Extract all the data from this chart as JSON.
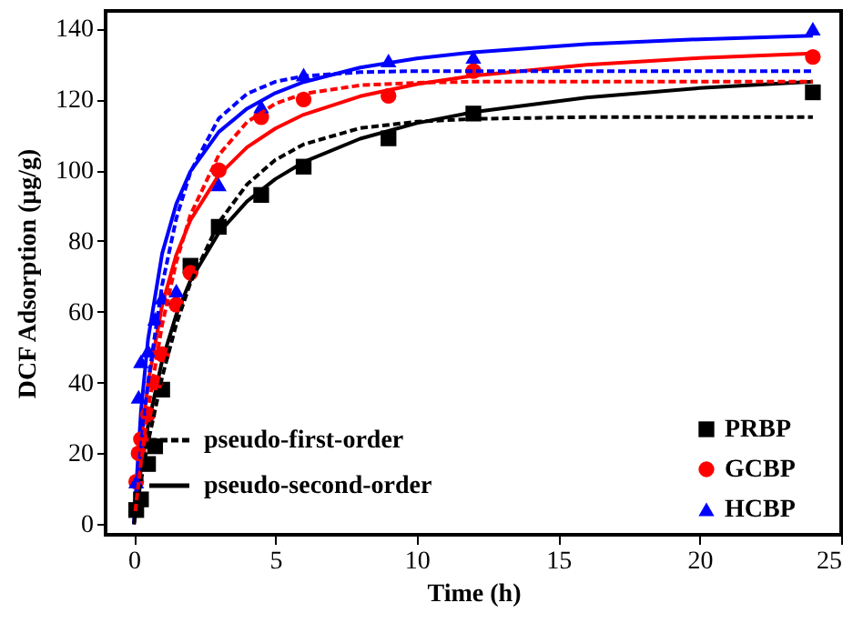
{
  "chart_data": {
    "type": "scatter",
    "xlabel": "Time (h)",
    "ylabel": "DCF Adsorption (μg/g)",
    "xlim": [
      -1,
      25
    ],
    "ylim": [
      -3,
      145
    ],
    "xticks": [
      0,
      5,
      10,
      15,
      20,
      25
    ],
    "yticks": [
      0,
      20,
      40,
      60,
      80,
      100,
      120,
      140
    ],
    "grid": false,
    "legend": "bottom right",
    "series": [
      {
        "type": "line",
        "name": "pseudo-first-order",
        "color": "#000000",
        "line_style": "dashed",
        "x": [
          0,
          0.25,
          0.5,
          1,
          1.5,
          2,
          3,
          4,
          5,
          6,
          8,
          10,
          12,
          16,
          20,
          24
        ],
        "values": [
          0,
          12.2,
          23.1,
          41.6,
          56.5,
          68.2,
          85.2,
          96.0,
          102.9,
          107.3,
          111.9,
          113.7,
          114.5,
          115,
          115,
          115
        ]
      },
      {
        "type": "line",
        "color": "#0000ff",
        "line_style": "dashed",
        "x": [
          0.1,
          0.25,
          0.5,
          1,
          1.5,
          2,
          3,
          4,
          5,
          6,
          8,
          10,
          12,
          16,
          20,
          24
        ],
        "values": [
          9.2,
          21.9,
          40.0,
          67.6,
          86.4,
          99.5,
          114.6,
          121.6,
          125.0,
          126.6,
          127.7,
          128,
          128,
          128,
          128,
          128
        ]
      },
      {
        "type": "line",
        "color": "#ff0000",
        "line_style": "dashed",
        "x": [
          0.05,
          0.25,
          0.5,
          1,
          1.5,
          2,
          3,
          4,
          5,
          6,
          8,
          10,
          12,
          16,
          20,
          24
        ],
        "values": [
          3.7,
          17.4,
          32.4,
          56.4,
          74.1,
          87.4,
          104.3,
          113.6,
          118.8,
          121.6,
          124.0,
          124.7,
          125,
          125,
          125,
          125
        ]
      },
      {
        "type": "line",
        "name": "pseudo-second-order",
        "color": "#000000",
        "line_style": "solid",
        "x": [
          0,
          0.25,
          0.5,
          1,
          1.5,
          2,
          3,
          4,
          5,
          6,
          8,
          10,
          12,
          16,
          20,
          24
        ],
        "values": [
          0,
          15.6,
          27.9,
          46.2,
          59.2,
          68.9,
          82.3,
          91.2,
          97.5,
          102.3,
          108.9,
          113.3,
          116.4,
          120.5,
          123.2,
          125.0
        ]
      },
      {
        "type": "line",
        "color": "#ff0000",
        "line_style": "solid",
        "x": [
          0,
          0.25,
          0.5,
          1,
          1.5,
          2,
          3,
          4,
          5,
          6,
          8,
          10,
          12,
          16,
          20,
          24
        ],
        "values": [
          0,
          23.2,
          39.8,
          61.9,
          76.1,
          85.9,
          98.6,
          106.5,
          111.8,
          115.7,
          120.9,
          124.3,
          126.7,
          129.8,
          131.7,
          133.0
        ]
      },
      {
        "type": "line",
        "color": "#0000ff",
        "line_style": "solid",
        "x": [
          0,
          0.25,
          0.5,
          1,
          1.5,
          2,
          3,
          4,
          5,
          6,
          8,
          10,
          12,
          16,
          20,
          24
        ],
        "values": [
          0,
          31.9,
          52.2,
          76.5,
          90.5,
          99.7,
          110.8,
          117.4,
          121.8,
          124.9,
          129.0,
          131.6,
          133.3,
          135.6,
          137.0,
          138.0
        ]
      },
      {
        "name": "PRBP",
        "color": "#000000",
        "marker": "square",
        "x": [
          0.083,
          0.25,
          0.5,
          0.75,
          1,
          2,
          3,
          4.5,
          6,
          9,
          12,
          24
        ],
        "values": [
          4,
          7,
          17,
          22,
          38,
          73,
          84,
          93,
          101,
          109,
          116,
          122
        ]
      },
      {
        "name": "GCBP",
        "color": "#ff0000",
        "marker": "circle",
        "x": [
          0.083,
          0.167,
          0.25,
          0.5,
          0.75,
          1,
          1.5,
          2,
          3,
          4.5,
          6,
          9,
          12,
          24
        ],
        "values": [
          12,
          20,
          24,
          31,
          40,
          48,
          62,
          71,
          100,
          115,
          120,
          121,
          128,
          132
        ]
      },
      {
        "name": "HCBP",
        "color": "#0000ff",
        "marker": "triangle",
        "x": [
          0.083,
          0.167,
          0.25,
          0.5,
          0.75,
          1,
          1.5,
          3,
          4.5,
          6,
          9,
          12,
          24
        ],
        "values": [
          12,
          36,
          46,
          49,
          58,
          64,
          66,
          96,
          118,
          127,
          131,
          132,
          140
        ]
      }
    ]
  }
}
